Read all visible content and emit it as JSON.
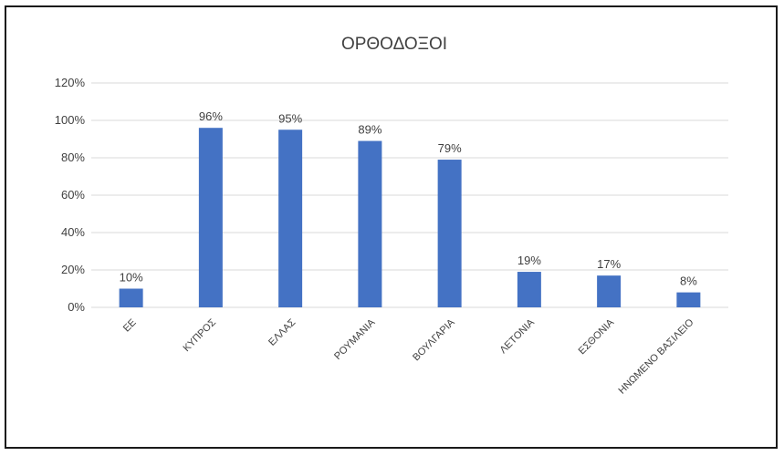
{
  "chart_data": {
    "type": "bar",
    "title": "ΟΡΘΟΔΟΞΟΙ",
    "categories": [
      "ΕΕ",
      "ΚΥΠΡΟΣ",
      "ΕΛΛΑΣ",
      "ΡΟΥΜΑΝΙΑ",
      "ΒΟΥΛΓΑΡΙΑ",
      "ΛΕΤΟΝΙΑ",
      "ΕΣΘΟΝΙΑ",
      "ΗΝΩΜΕΝΟ ΒΑΣΙΛΕΙΟ"
    ],
    "values": [
      10,
      96,
      95,
      89,
      79,
      19,
      17,
      8
    ],
    "data_labels": [
      "10%",
      "96%",
      "95%",
      "89%",
      "79%",
      "19%",
      "17%",
      "8%"
    ],
    "yticks": [
      0,
      20,
      40,
      60,
      80,
      100,
      120
    ],
    "ytick_labels": [
      "0%",
      "20%",
      "40%",
      "60%",
      "80%",
      "100%",
      "120%"
    ],
    "ylim": [
      0,
      120
    ],
    "xlabel": "",
    "ylabel": "",
    "grid": true,
    "legend": "none",
    "colors": {
      "bar": "#4472c4",
      "grid": "#d9d9d9",
      "text": "#404040"
    }
  }
}
